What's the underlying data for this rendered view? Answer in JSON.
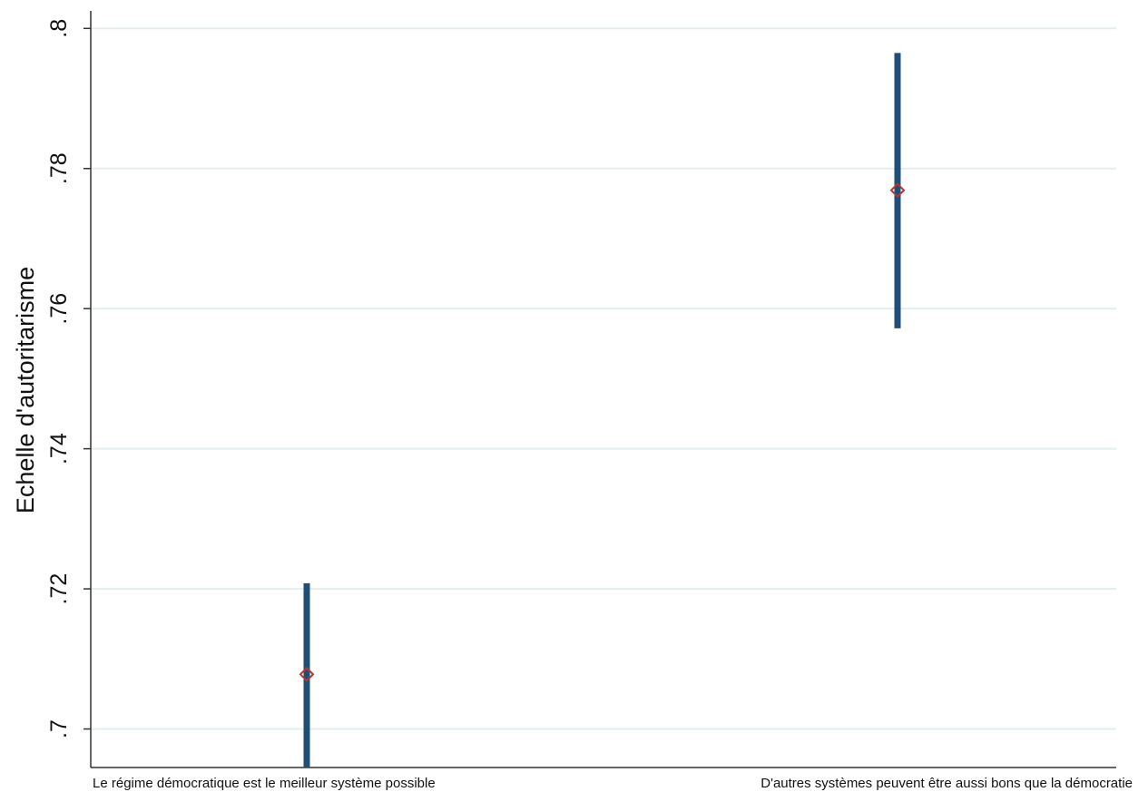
{
  "chart_data": {
    "type": "scatter",
    "ylabel": "Echelle d'autoritarisme",
    "xlabel": "",
    "ylim": [
      0.6945,
      0.8025
    ],
    "yticks": [
      {
        "value": 0.7,
        "label": ".7"
      },
      {
        "value": 0.72,
        "label": ".72"
      },
      {
        "value": 0.74,
        "label": ".74"
      },
      {
        "value": 0.76,
        "label": ".76"
      },
      {
        "value": 0.78,
        "label": ".78"
      },
      {
        "value": 0.8,
        "label": ".8"
      }
    ],
    "grid": true,
    "categories": [
      "Le régime démocratique est le meilleur système possible",
      "D'autres systèmes peuvent être aussi bons que la démocratie"
    ],
    "points": [
      {
        "category": "Le régime démocratique est le meilleur système possible",
        "estimate": 0.7078,
        "ci_low": 0.6945,
        "ci_high": 0.7208
      },
      {
        "category": "D'autres systèmes peuvent être aussi bons que la démocratie",
        "estimate": 0.7769,
        "ci_low": 0.7572,
        "ci_high": 0.7965
      }
    ],
    "colors": {
      "ci_bar": "#1f4e79",
      "marker": "#b03a2e",
      "grid": "#e3eef0",
      "axis": "#333333"
    }
  }
}
